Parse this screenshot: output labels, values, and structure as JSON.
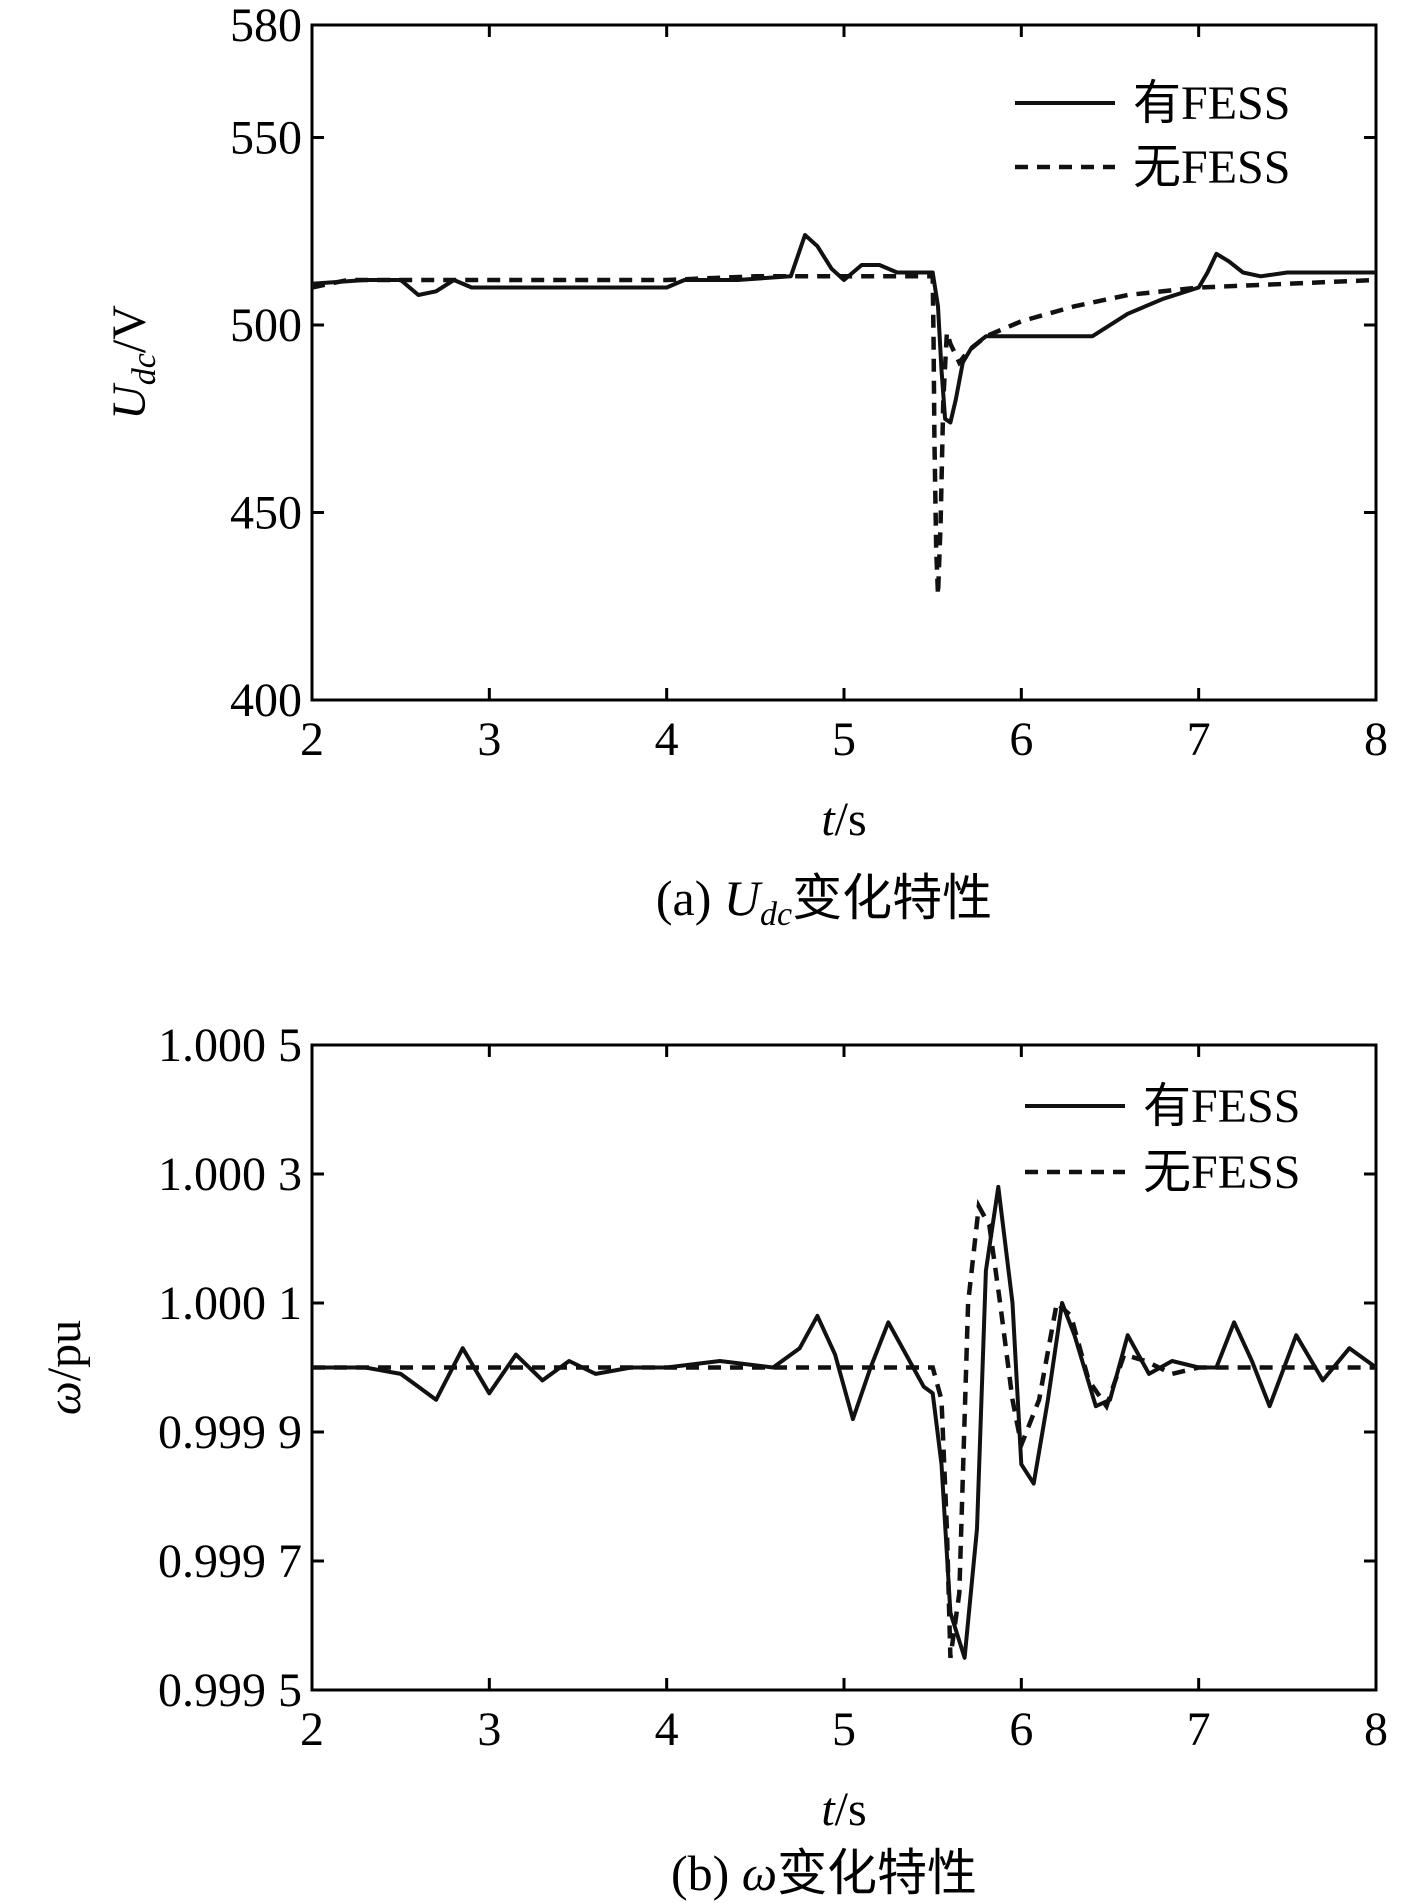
{
  "chart_data": [
    {
      "type": "line",
      "caption_prefix": "(a) ",
      "caption_var": "U",
      "caption_sub": "dc",
      "caption_suffix": "变化特性",
      "xlabel_var": "t",
      "xlabel_unit": "/s",
      "ylabel_var": "U",
      "ylabel_sub": "dc",
      "ylabel_unit": "/V",
      "xlim": [
        2,
        8
      ],
      "ylim": [
        400,
        580
      ],
      "xticks": [
        2,
        3,
        4,
        5,
        6,
        7,
        8
      ],
      "xtick_labels": [
        "2",
        "3",
        "4",
        "5",
        "6",
        "7",
        "8"
      ],
      "yticks": [
        400,
        450,
        500,
        550,
        580
      ],
      "ytick_labels": [
        "400",
        "450",
        "500",
        "550",
        "580"
      ],
      "grid": false,
      "legend_position": "top-right",
      "series": [
        {
          "name": "有FESS",
          "style": "solid",
          "x": [
            2.0,
            2.3,
            2.5,
            2.6,
            2.7,
            2.8,
            2.9,
            3.5,
            4.0,
            4.1,
            4.4,
            4.7,
            4.78,
            4.85,
            4.93,
            5.0,
            5.1,
            5.2,
            5.3,
            5.5,
            5.53,
            5.55,
            5.57,
            5.6,
            5.63,
            5.67,
            5.72,
            5.8,
            6.0,
            6.4,
            6.6,
            6.8,
            7.0,
            7.05,
            7.1,
            7.17,
            7.25,
            7.35,
            7.5,
            8.0
          ],
          "y": [
            511,
            512,
            512,
            508,
            509,
            512,
            510,
            510,
            510,
            512,
            512,
            513,
            524,
            521,
            515,
            512,
            516,
            516,
            514,
            514,
            505,
            488,
            475,
            474,
            480,
            490,
            494,
            497,
            497,
            497,
            503,
            507,
            510,
            514,
            519,
            517,
            514,
            513,
            514,
            514
          ]
        },
        {
          "name": "无FESS",
          "style": "dashed",
          "x": [
            2.0,
            2.2,
            2.5,
            3.0,
            3.5,
            4.0,
            4.5,
            5.0,
            5.5,
            5.505,
            5.51,
            5.52,
            5.53,
            5.545,
            5.56,
            5.58,
            5.6,
            5.65,
            5.7,
            5.8,
            6.0,
            6.3,
            6.6,
            7.0,
            7.5,
            8.0
          ],
          "y": [
            510,
            512,
            512,
            512,
            512,
            512,
            513,
            513,
            513,
            495,
            470,
            440,
            428,
            447,
            480,
            498,
            495,
            490,
            493,
            497,
            501,
            505,
            508,
            510,
            511,
            512
          ]
        }
      ]
    },
    {
      "type": "line",
      "caption_prefix": "(b) ",
      "caption_var": "ω",
      "caption_sub": "",
      "caption_suffix": "变化特性",
      "xlabel_var": "t",
      "xlabel_unit": "/s",
      "ylabel_var": "ω",
      "ylabel_sub": "",
      "ylabel_unit": "/pu",
      "xlim": [
        2,
        8
      ],
      "ylim": [
        0.9995,
        1.0005
      ],
      "xticks": [
        2,
        3,
        4,
        5,
        6,
        7,
        8
      ],
      "xtick_labels": [
        "2",
        "3",
        "4",
        "5",
        "6",
        "7",
        "8"
      ],
      "yticks": [
        0.9995,
        0.9997,
        0.9999,
        1.0001,
        1.0003,
        1.0005
      ],
      "ytick_labels": [
        "0.999 5",
        "0.999 7",
        "0.999 9",
        "1.000 1",
        "1.000 3",
        "1.000 5"
      ],
      "grid": false,
      "legend_position": "top-right",
      "series": [
        {
          "name": "有FESS",
          "style": "solid",
          "x": [
            2.0,
            2.3,
            2.5,
            2.6,
            2.7,
            2.85,
            3.0,
            3.15,
            3.3,
            3.45,
            3.6,
            3.8,
            4.0,
            4.3,
            4.6,
            4.75,
            4.85,
            4.95,
            5.05,
            5.15,
            5.25,
            5.35,
            5.45,
            5.5,
            5.55,
            5.6,
            5.68,
            5.75,
            5.8,
            5.87,
            5.95,
            6.0,
            6.07,
            6.15,
            6.23,
            6.3,
            6.42,
            6.5,
            6.6,
            6.72,
            6.85,
            7.0,
            7.1,
            7.2,
            7.3,
            7.4,
            7.55,
            7.7,
            7.85,
            8.0
          ],
          "y": [
            1.0,
            1.0,
            0.99999,
            0.99997,
            0.99995,
            1.00003,
            0.99996,
            1.00002,
            0.99998,
            1.00001,
            0.99999,
            1.0,
            1.0,
            1.00001,
            1.0,
            1.00003,
            1.00008,
            1.00002,
            0.99992,
            1.0,
            1.00007,
            1.00002,
            0.99997,
            0.99996,
            0.99985,
            0.99962,
            0.99955,
            0.99975,
            1.00015,
            1.00028,
            1.0001,
            0.99985,
            0.99982,
            0.99995,
            1.0001,
            1.00005,
            0.99994,
            0.99995,
            1.00005,
            0.99999,
            1.00001,
            1.0,
            1.0,
            1.00007,
            1.00001,
            0.99994,
            1.00005,
            0.99998,
            1.00003,
            1.0
          ]
        },
        {
          "name": "无FESS",
          "style": "dashed",
          "x": [
            2.0,
            2.5,
            3.0,
            3.5,
            4.0,
            4.5,
            5.0,
            5.5,
            5.55,
            5.58,
            5.6,
            5.65,
            5.7,
            5.76,
            5.82,
            5.88,
            5.95,
            6.0,
            6.1,
            6.2,
            6.28,
            6.38,
            6.48,
            6.58,
            6.7,
            6.85,
            7.0,
            7.2,
            7.5,
            8.0
          ],
          "y": [
            1.0,
            1.0,
            1.0,
            1.0,
            1.0,
            1.0,
            1.0,
            1.0,
            0.99995,
            0.99975,
            0.99955,
            0.99965,
            1.0001,
            1.00025,
            1.00022,
            1.0001,
            0.99995,
            0.99988,
            0.99995,
            1.0001,
            1.00008,
            0.99998,
            0.99994,
            1.00002,
            1.00001,
            0.99999,
            1.0,
            1.0,
            1.0,
            1.0
          ]
        }
      ]
    }
  ]
}
